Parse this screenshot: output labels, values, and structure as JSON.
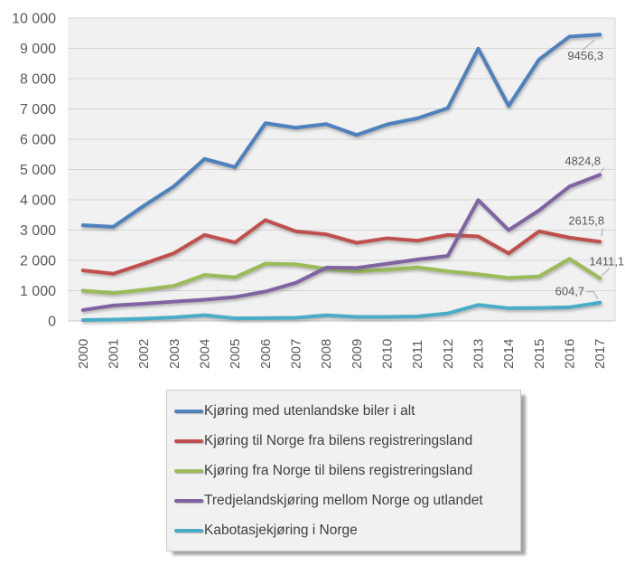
{
  "chart_data": {
    "type": "line",
    "title": "",
    "xlabel": "",
    "ylabel": "",
    "ylim": [
      0,
      10000
    ],
    "grid": true,
    "legend_position": "bottom",
    "x_categories": [
      "2000",
      "2001",
      "2002",
      "2003",
      "2004",
      "2005",
      "2006",
      "2007",
      "2008",
      "2009",
      "2010",
      "2011",
      "2012",
      "2013",
      "2014",
      "2015",
      "2016",
      "2017"
    ],
    "y_tick_labels": [
      "0",
      "1 000",
      "2 000",
      "3 000",
      "4 000",
      "5 000",
      "6 000",
      "7 000",
      "8 000",
      "9 000",
      "10 000"
    ],
    "series": [
      {
        "name": "Kjøring med utenlandske biler i alt",
        "color": "#4F81BD",
        "end_label": "9456,3",
        "values": [
          3160,
          3110,
          3800,
          4450,
          5350,
          5080,
          6530,
          6380,
          6500,
          6140,
          6490,
          6690,
          7030,
          8990,
          7100,
          8630,
          9390,
          9456.3
        ]
      },
      {
        "name": "Kjøring til Norge fra bilens registreringsland",
        "color": "#C0504D",
        "end_label": "2615,8",
        "values": [
          1670,
          1560,
          1890,
          2240,
          2840,
          2590,
          3330,
          2960,
          2860,
          2580,
          2730,
          2650,
          2840,
          2790,
          2230,
          2960,
          2750,
          2615.8
        ]
      },
      {
        "name": "Kjøring fra Norge til bilens registreringsland",
        "color": "#9BBB59",
        "end_label": "1411,1",
        "values": [
          1000,
          920,
          1030,
          1160,
          1520,
          1440,
          1890,
          1870,
          1720,
          1640,
          1690,
          1770,
          1640,
          1540,
          1420,
          1470,
          2050,
          1411.1
        ]
      },
      {
        "name": "Tredjelandskjøring mellom Norge og utlandet",
        "color": "#8064A2",
        "end_label": "4824,8",
        "values": [
          360,
          510,
          570,
          640,
          700,
          790,
          970,
          1260,
          1760,
          1750,
          1890,
          2030,
          2150,
          3990,
          3000,
          3650,
          4440,
          4824.8
        ]
      },
      {
        "name": "Kabotasjekjøring i Norge",
        "color": "#4BACC6",
        "end_label": "604,7",
        "values": [
          30,
          45,
          75,
          120,
          190,
          85,
          95,
          105,
          185,
          135,
          135,
          150,
          250,
          530,
          420,
          430,
          450,
          604.7
        ]
      }
    ],
    "colors": {
      "plot_bg": "#f1f1f1",
      "gridline": "#d6d6d6",
      "axis_line": "#c9c9c9",
      "axis_text": "#595959",
      "data_label": "#595959",
      "leader_line": "#a6a6a6",
      "legend_bg": "#f1f1f1",
      "legend_border": "#c9c9c9",
      "legend_text": "#404040"
    }
  }
}
